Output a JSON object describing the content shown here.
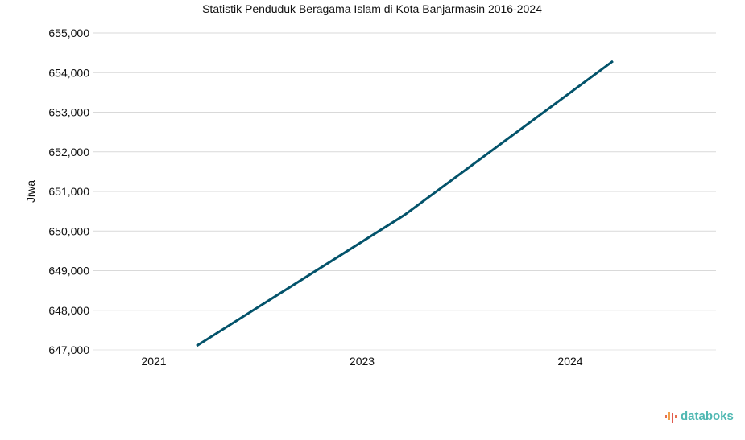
{
  "chart_data": {
    "type": "line",
    "title": "Statistik Penduduk Beragama Islam di Kota Banjarmasin 2016-2024",
    "xlabel": "",
    "ylabel": "Jiwa",
    "categories": [
      "2021",
      "2023",
      "2024"
    ],
    "series": [
      {
        "name": "Jiwa",
        "values": [
          647100,
          650410,
          654290
        ],
        "color": "#03536b"
      }
    ],
    "ylim": [
      647000,
      655000
    ],
    "yticks": [
      647000,
      648000,
      649000,
      650000,
      651000,
      652000,
      653000,
      654000,
      655000
    ],
    "ytick_labels": [
      "647,000",
      "648,000",
      "649,000",
      "650,000",
      "651,000",
      "652,000",
      "653,000",
      "654,000",
      "655,000"
    ],
    "grid": true,
    "legend": "none"
  },
  "branding": {
    "logo_text": "databoks",
    "logo_icon": "databoks-bars-icon",
    "logo_color": "#4fb8b2"
  }
}
